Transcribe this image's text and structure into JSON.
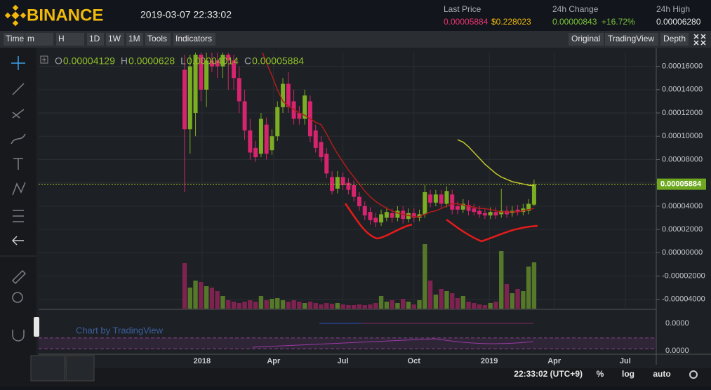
{
  "header": {
    "brand": "BINANCE",
    "datetime": "2019-03-07 22:33:02",
    "last_price_label": "Last Price",
    "last_price": "0.00005884",
    "last_price_usd": "$0.228023",
    "change_label": "24h Change",
    "change": "0.00000843",
    "change_pct": "+16.72%",
    "high_label": "24h High",
    "high": "0.00006280"
  },
  "toolbar": {
    "left": [
      "Time",
      "m",
      "H",
      "1D",
      "1W",
      "1M",
      "Tools",
      "Indicators"
    ],
    "active": "1W",
    "right": [
      "Original",
      "TradingView",
      "Depth"
    ],
    "active_view": "TradingView"
  },
  "footer": {
    "time": "22:33:02 (UTC+9)",
    "buttons": [
      "%",
      "log",
      "auto"
    ]
  },
  "indicator": {
    "watermark": "Chart by TradingView",
    "ticks": [
      "0.0000",
      "0.0000"
    ]
  },
  "chart_data": {
    "type": "candlestick",
    "ohlc_prefix": [
      "O",
      "H",
      "L",
      "C"
    ],
    "up_color": "#7cae23",
    "down_color": "#d6246e",
    "open": [
      0.000157,
      0.000106,
      0.00012,
      0.00017,
      0.00014,
      0.000165,
      0.000165,
      0.00016,
      0.00017,
      0.000165,
      0.00015,
      0.00013,
      0.000105,
      9e-05,
      8.5e-05,
      0.00011,
      8.8e-05,
      0.0001,
      0.000125,
      0.000145,
      0.00013,
      0.00012,
      0.000115,
      0.00013,
      0.000105,
      9.5e-05,
      8.5e-05,
      6.5e-05,
      5.5e-05,
      6.5e-05,
      6e-05,
      5.8e-05,
      4.8e-05,
      4e-05,
      3.5e-05,
      3e-05,
      2.6e-05,
      3e-05,
      3.4e-05,
      3e-05,
      3.6e-05,
      2.9e-05,
      3.4e-05,
      3e-05,
      3.3e-05,
      5e-05,
      4.3e-05,
      5e-05,
      4.2e-05,
      5e-05,
      4e-05,
      3.7e-05,
      4.1e-05,
      3.8e-05,
      3.6e-05,
      3.4e-05,
      3.2e-05,
      3.5e-05,
      3.3e-05,
      3.6e-05,
      3.4e-05,
      3.7e-05,
      3.5e-05,
      3.6e-05,
      4.129e-05
    ],
    "high": [
      0.00017,
      0.00017,
      0.00018,
      0.00018,
      0.000175,
      0.000175,
      0.000175,
      0.000175,
      0.00018,
      0.00017,
      0.00016,
      0.00014,
      0.000115,
      9.6e-05,
      0.00012,
      0.000116,
      0.000106,
      0.00013,
      0.00015,
      0.000155,
      0.00014,
      0.000126,
      0.00014,
      0.000135,
      0.00011,
      0.0001,
      9e-05,
      7e-05,
      7e-05,
      6.9e-05,
      6.4e-05,
      6.2e-05,
      5.2e-05,
      4.4e-05,
      3.9e-05,
      3.4e-05,
      3.7e-05,
      3.9e-05,
      3.8e-05,
      4e-05,
      4e-05,
      3.8e-05,
      3.8e-05,
      3.7e-05,
      5.8e-05,
      5.4e-05,
      5.4e-05,
      5.4e-05,
      5.7e-05,
      5.4e-05,
      4.4e-05,
      4.6e-05,
      4.5e-05,
      4.2e-05,
      4e-05,
      3.8e-05,
      3.9e-05,
      3.9e-05,
      5.5e-05,
      4e-05,
      4e-05,
      4.1e-05,
      4.2e-05,
      4.6e-05,
      6.28e-05
    ],
    "low": [
      5.2e-05,
      8.5e-05,
      0.0001,
      0.00013,
      0.000125,
      0.000155,
      0.00015,
      0.00015,
      0.00014,
      0.00014,
      0.00012,
      9.7e-05,
      8e-05,
      7.8e-05,
      8.2e-05,
      8e-05,
      8.4e-05,
      9.6e-05,
      0.00012,
      0.00012,
      0.00011,
      0.00011,
      0.00011,
      9.5e-05,
      8.6e-05,
      7.8e-05,
      6.4e-05,
      5e-05,
      5.1e-05,
      5.4e-05,
      5e-05,
      4.4e-05,
      3.6e-05,
      2.8e-05,
      2.4e-05,
      2.2e-05,
      2.3e-05,
      2.7e-05,
      2.6e-05,
      2.7e-05,
      2.5e-05,
      2.6e-05,
      2.6e-05,
      2.7e-05,
      3e-05,
      3.9e-05,
      4e-05,
      3.8e-05,
      3.9e-05,
      3.3e-05,
      3.3e-05,
      3.4e-05,
      3.2e-05,
      3.2e-05,
      3e-05,
      2.9e-05,
      2.9e-05,
      2.9e-05,
      3e-05,
      3e-05,
      3.1e-05,
      3.2e-05,
      3.2e-05,
      3.3e-05,
      4.014e-05
    ],
    "close": [
      0.000106,
      0.00016,
      0.00017,
      0.00014,
      0.000165,
      0.00016,
      0.00016,
      0.00017,
      0.000165,
      0.00015,
      0.00013,
      0.000105,
      8.6e-05,
      8.2e-05,
      0.000115,
      8.5e-05,
      0.0001,
      0.000125,
      0.000145,
      0.000125,
      0.000115,
      0.000115,
      0.000135,
      0.0001,
      9e-05,
      8.2e-05,
      6.8e-05,
      5.3e-05,
      6.5e-05,
      5.8e-05,
      5.4e-05,
      4.8e-05,
      4e-05,
      3.2e-05,
      2.8e-05,
      2.6e-05,
      3.3e-05,
      3.5e-05,
      3e-05,
      3.6e-05,
      2.9e-05,
      3.4e-05,
      3e-05,
      3.3e-05,
      5.2e-05,
      4.3e-05,
      5e-05,
      4.2e-05,
      5.3e-05,
      3.7e-05,
      3.7e-05,
      4.2e-05,
      3.6e-05,
      3.5e-05,
      3.3e-05,
      3.2e-05,
      3.5e-05,
      3.2e-05,
      3.6e-05,
      3.3e-05,
      3.6e-05,
      3.5e-05,
      3.8e-05,
      4.2e-05,
      5.884e-05
    ],
    "volume": [
      65,
      30,
      40,
      38,
      32,
      30,
      25,
      18,
      12,
      10,
      8,
      10,
      12,
      10,
      18,
      12,
      14,
      15,
      12,
      10,
      12,
      10,
      8,
      10,
      8,
      6,
      8,
      7,
      8,
      6,
      5,
      5,
      6,
      5,
      6,
      8,
      18,
      10,
      12,
      8,
      14,
      10,
      6,
      12,
      92,
      40,
      20,
      28,
      25,
      22,
      15,
      18,
      10,
      8,
      6,
      5,
      8,
      10,
      82,
      35,
      22,
      28,
      25,
      60,
      66
    ],
    "volume_ylim": [
      0,
      100
    ],
    "lines": [
      {
        "color": "#b01c1c",
        "values": [
          null,
          null,
          null,
          null,
          null,
          null,
          null,
          null,
          null,
          null,
          null,
          null,
          null,
          null,
          0.000175,
          0.000163,
          0.000152,
          0.00014,
          0.00013,
          0.000126,
          0.000123,
          0.00012,
          0.000118,
          0.000115,
          0.000112,
          0.00011,
          0.000102,
          9.3e-05,
          8.5e-05,
          7.8e-05,
          7.1e-05,
          6.5e-05,
          5.9e-05,
          5.3e-05,
          4.8e-05,
          4.4e-05,
          4.1e-05,
          3.8e-05,
          3.6e-05,
          3.4e-05,
          3.3e-05,
          3.2e-05,
          3.1e-05,
          3.1e-05,
          3.3e-05,
          3.5e-05,
          3.6e-05,
          3.8e-05,
          4e-05,
          4.2e-05,
          4.2e-05,
          4.1e-05,
          4e-05,
          3.9e-05,
          3.8e-05,
          3.8e-05,
          3.7e-05,
          3.6e-05,
          3.5e-05,
          3.5e-05,
          3.5e-05,
          3.5e-05,
          3.6e-05,
          3.7e-05,
          3.8e-05
        ]
      },
      {
        "color": "#c3c72a",
        "values": [
          null,
          null,
          null,
          null,
          null,
          null,
          null,
          null,
          null,
          null,
          null,
          null,
          null,
          null,
          null,
          null,
          null,
          null,
          null,
          null,
          null,
          null,
          null,
          null,
          null,
          null,
          null,
          null,
          null,
          null,
          null,
          null,
          null,
          null,
          null,
          null,
          null,
          null,
          null,
          null,
          null,
          null,
          null,
          null,
          null,
          null,
          null,
          null,
          null,
          null,
          9.7e-05,
          9.5e-05,
          9.1e-05,
          8.6e-05,
          8.1e-05,
          7.6e-05,
          7.2e-05,
          6.8e-05,
          6.5e-05,
          6.3e-05,
          6.1e-05,
          6e-05,
          5.9e-05,
          5.8e-05,
          5.75e-05
        ]
      }
    ],
    "ylim": [
      -4.8e-05,
      0.00017
    ],
    "yticks": [
      {
        "value": 0.00016,
        "label": "0.00016000"
      },
      {
        "value": 0.00014,
        "label": "0.00014000"
      },
      {
        "value": 0.00012,
        "label": "0.00012000"
      },
      {
        "value": 0.0001,
        "label": "0.00010000"
      },
      {
        "value": 8e-05,
        "label": "0.00008000"
      },
      {
        "value": 6e-05,
        "label": "0.00006000"
      },
      {
        "value": 4e-05,
        "label": "0.00004000"
      },
      {
        "value": 2e-05,
        "label": "0.00002000"
      },
      {
        "value": 0,
        "label": "0.00000000"
      },
      {
        "value": -2e-05,
        "label": "-0.00002000"
      },
      {
        "value": -4e-05,
        "label": "-0.00004000"
      }
    ],
    "xticks": [
      {
        "value": 3.2,
        "label": "2018"
      },
      {
        "value": 16.3,
        "label": "Apr"
      },
      {
        "value": 29,
        "label": "Jul"
      },
      {
        "value": 42,
        "label": "Oct"
      },
      {
        "value": 55.8,
        "label": "2019"
      },
      {
        "value": 67.7,
        "label": "Apr"
      },
      {
        "value": 80.7,
        "label": "Jul"
      }
    ]
  }
}
